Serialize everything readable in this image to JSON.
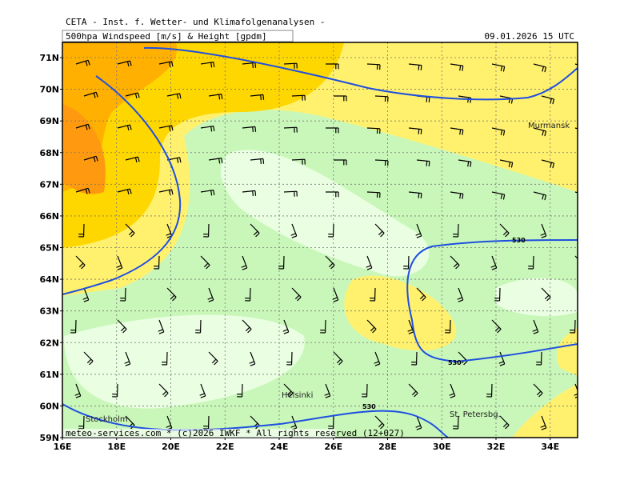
{
  "header": {
    "line1": "CETA - Inst. f. Wetter- und Klimafolgenanalysen -",
    "line2": "500hpa Windspeed [m/s] & Height [gpdm]",
    "datetime": "09.01.2026 15 UTC"
  },
  "map": {
    "lat_labels": [
      "71N",
      "70N",
      "69N",
      "68N",
      "67N",
      "66N",
      "65N",
      "64N",
      "63N",
      "62N",
      "61N",
      "60N",
      "59N"
    ],
    "lon_labels": [
      "16E",
      "18E",
      "20E",
      "22E",
      "24E",
      "26E",
      "28E",
      "30E",
      "32E",
      "34E"
    ],
    "places": [
      "Murmansk",
      "Helsinki",
      "Stockholm",
      "St. Petersbg."
    ],
    "contour_labels": [
      "530",
      "530",
      "530"
    ]
  },
  "footer": "meteo-services.com * (c)2026 IWKF * All rights reserved (12+027)"
}
